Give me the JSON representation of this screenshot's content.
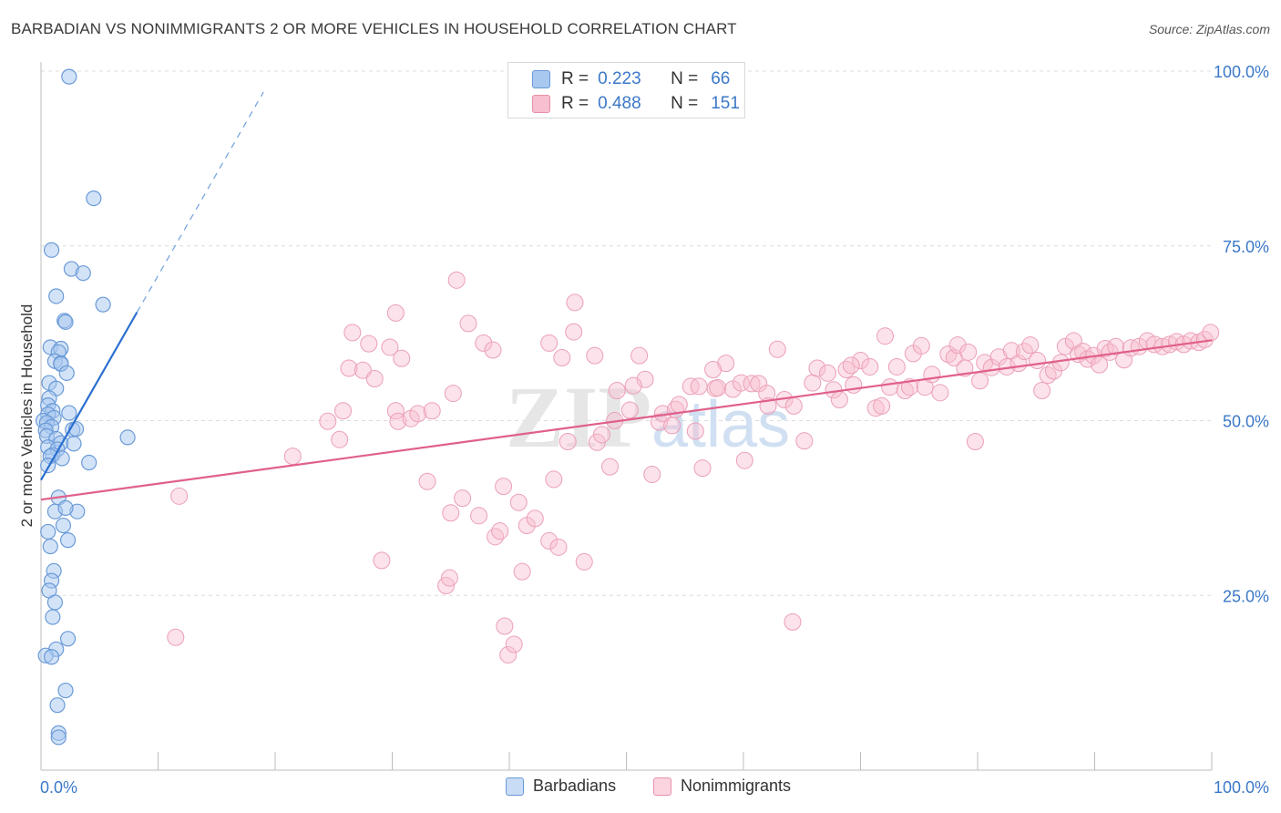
{
  "title": "BARBADIAN VS NONIMMIGRANTS 2 OR MORE VEHICLES IN HOUSEHOLD CORRELATION CHART",
  "source": "Source: ZipAtlas.com",
  "watermark": {
    "zip": "ZIP",
    "atlas": "atlas"
  },
  "legend_top": [
    {
      "r_label": "R =",
      "r_value": "0.223",
      "n_label": "N =",
      "n_value": "66",
      "color": "#a8c8f0",
      "border": "#6a9ad8"
    },
    {
      "r_label": "R =",
      "r_value": "0.488",
      "n_label": "N =",
      "n_value": "151",
      "color": "#f8bfd0",
      "border": "#e890aa"
    }
  ],
  "legend_bottom": [
    {
      "label": "Barbadians",
      "color": "#c8dcf6",
      "border": "#6a9ad8"
    },
    {
      "label": "Nonimmigrants",
      "color": "#fbd4e0",
      "border": "#e890aa"
    }
  ],
  "chart_data": {
    "type": "scatter",
    "title": "BARBADIAN VS NONIMMIGRANTS 2 OR MORE VEHICLES IN HOUSEHOLD CORRELATION CHART",
    "xlabel": "",
    "ylabel": "2 or more Vehicles in Household",
    "xlim": [
      0,
      100
    ],
    "ylim": [
      0,
      100
    ],
    "x_tick_labels": [
      "0.0%",
      "100.0%"
    ],
    "y_tick_labels": [
      "100.0%",
      "75.0%",
      "50.0%",
      "25.0%"
    ],
    "y_ticks": [
      100,
      75,
      50,
      25
    ],
    "grid": true,
    "colors": {
      "barbadians": "#6a9ad8",
      "nonimmigrants": "#e8789c",
      "trend_blue": "#2a6fd0",
      "trend_pink": "#e0608a",
      "tick_label": "#3b78c8"
    },
    "series": [
      {
        "name": "Barbadians",
        "color": "#6a9ad8",
        "trend": {
          "x0": 0.0,
          "y0": 41.5,
          "x1": 8.2,
          "y1": 65.5,
          "dash_x1": 19.0,
          "dash_y1": 97.0
        },
        "points": [
          [
            2.4,
            99.2
          ],
          [
            4.5,
            81.8
          ],
          [
            0.9,
            74.4
          ],
          [
            2.6,
            71.7
          ],
          [
            3.6,
            71.1
          ],
          [
            1.3,
            67.8
          ],
          [
            5.3,
            66.6
          ],
          [
            2.0,
            64.3
          ],
          [
            2.1,
            64.1
          ],
          [
            0.8,
            60.5
          ],
          [
            1.7,
            60.3
          ],
          [
            1.5,
            59.8
          ],
          [
            1.2,
            58.5
          ],
          [
            1.7,
            58.2
          ],
          [
            1.7,
            58.1
          ],
          [
            2.2,
            56.8
          ],
          [
            0.7,
            55.4
          ],
          [
            1.3,
            54.6
          ],
          [
            0.7,
            53.2
          ],
          [
            0.6,
            52.2
          ],
          [
            1.0,
            51.4
          ],
          [
            0.6,
            50.9
          ],
          [
            2.4,
            51.1
          ],
          [
            1.1,
            50.4
          ],
          [
            0.2,
            50.0
          ],
          [
            0.5,
            49.7
          ],
          [
            0.9,
            49.1
          ],
          [
            0.4,
            48.6
          ],
          [
            0.5,
            47.8
          ],
          [
            1.3,
            47.4
          ],
          [
            2.7,
            48.7
          ],
          [
            3.0,
            48.8
          ],
          [
            1.7,
            46.8
          ],
          [
            0.6,
            46.2
          ],
          [
            1.4,
            45.9
          ],
          [
            2.8,
            46.7
          ],
          [
            1.0,
            45.1
          ],
          [
            0.8,
            44.9
          ],
          [
            1.8,
            44.6
          ],
          [
            0.6,
            43.6
          ],
          [
            4.1,
            44.0
          ],
          [
            7.4,
            47.6
          ],
          [
            1.5,
            39.0
          ],
          [
            1.2,
            37.0
          ],
          [
            3.1,
            37.0
          ],
          [
            2.1,
            37.5
          ],
          [
            1.9,
            35.0
          ],
          [
            0.6,
            34.1
          ],
          [
            2.3,
            32.9
          ],
          [
            0.8,
            32.0
          ],
          [
            1.1,
            28.5
          ],
          [
            0.9,
            27.1
          ],
          [
            0.7,
            25.7
          ],
          [
            1.2,
            24.0
          ],
          [
            1.0,
            21.9
          ],
          [
            2.3,
            18.8
          ],
          [
            1.3,
            17.3
          ],
          [
            0.4,
            16.4
          ],
          [
            0.9,
            16.2
          ],
          [
            2.1,
            11.4
          ],
          [
            1.4,
            9.3
          ],
          [
            1.5,
            5.3
          ],
          [
            1.5,
            4.7
          ]
        ]
      },
      {
        "name": "Nonimmigrants",
        "color": "#e8789c",
        "trend": {
          "x0": 0.0,
          "y0": 38.7,
          "x1": 100.0,
          "y1": 61.5
        },
        "points": [
          [
            11.8,
            39.2
          ],
          [
            11.5,
            19.0
          ],
          [
            21.5,
            44.9
          ],
          [
            24.5,
            49.9
          ],
          [
            25.5,
            47.3
          ],
          [
            25.8,
            51.4
          ],
          [
            26.3,
            57.5
          ],
          [
            26.6,
            62.6
          ],
          [
            27.5,
            57.2
          ],
          [
            28.0,
            61.0
          ],
          [
            28.5,
            56.0
          ],
          [
            29.1,
            30.0
          ],
          [
            29.8,
            60.5
          ],
          [
            30.3,
            51.4
          ],
          [
            30.5,
            49.9
          ],
          [
            30.8,
            58.9
          ],
          [
            30.3,
            65.4
          ],
          [
            31.6,
            50.3
          ],
          [
            32.2,
            51.0
          ],
          [
            33.4,
            51.4
          ],
          [
            33.0,
            41.3
          ],
          [
            34.6,
            26.4
          ],
          [
            34.9,
            27.5
          ],
          [
            35.0,
            36.8
          ],
          [
            35.2,
            53.9
          ],
          [
            35.5,
            70.1
          ],
          [
            36.0,
            38.9
          ],
          [
            36.5,
            63.9
          ],
          [
            37.4,
            36.4
          ],
          [
            37.8,
            61.1
          ],
          [
            38.6,
            60.1
          ],
          [
            38.8,
            33.4
          ],
          [
            39.5,
            40.6
          ],
          [
            39.9,
            16.5
          ],
          [
            39.6,
            20.6
          ],
          [
            40.4,
            18.0
          ],
          [
            41.1,
            28.4
          ],
          [
            41.5,
            35.0
          ],
          [
            42.2,
            36.0
          ],
          [
            43.4,
            32.8
          ],
          [
            43.8,
            41.6
          ],
          [
            44.2,
            31.9
          ],
          [
            43.4,
            61.1
          ],
          [
            44.5,
            59.0
          ],
          [
            45.0,
            47.0
          ],
          [
            45.5,
            62.7
          ],
          [
            45.6,
            66.9
          ],
          [
            46.4,
            29.8
          ],
          [
            47.3,
            59.3
          ],
          [
            47.5,
            46.9
          ],
          [
            47.9,
            48.0
          ],
          [
            48.6,
            43.4
          ],
          [
            49.0,
            50.0
          ],
          [
            49.2,
            54.3
          ],
          [
            50.3,
            51.5
          ],
          [
            51.1,
            59.3
          ],
          [
            51.6,
            55.9
          ],
          [
            52.2,
            42.3
          ],
          [
            52.8,
            49.8
          ],
          [
            53.1,
            51.0
          ],
          [
            53.9,
            49.3
          ],
          [
            54.2,
            51.6
          ],
          [
            54.5,
            52.3
          ],
          [
            55.5,
            54.9
          ],
          [
            55.9,
            48.5
          ],
          [
            56.2,
            54.9
          ],
          [
            56.5,
            43.2
          ],
          [
            57.6,
            54.6
          ],
          [
            57.8,
            54.7
          ],
          [
            58.5,
            58.2
          ],
          [
            59.1,
            54.5
          ],
          [
            59.8,
            55.4
          ],
          [
            60.1,
            44.3
          ],
          [
            60.7,
            55.3
          ],
          [
            61.3,
            55.3
          ],
          [
            62.0,
            53.9
          ],
          [
            62.1,
            52.1
          ],
          [
            62.9,
            60.2
          ],
          [
            63.5,
            53.0
          ],
          [
            64.3,
            52.1
          ],
          [
            64.2,
            21.2
          ],
          [
            65.2,
            47.1
          ],
          [
            65.9,
            55.4
          ],
          [
            66.3,
            57.5
          ],
          [
            67.2,
            56.8
          ],
          [
            67.7,
            54.4
          ],
          [
            68.2,
            53.0
          ],
          [
            68.8,
            57.3
          ],
          [
            69.4,
            55.1
          ],
          [
            70.0,
            58.6
          ],
          [
            70.8,
            57.7
          ],
          [
            71.3,
            51.8
          ],
          [
            71.8,
            52.1
          ],
          [
            72.1,
            62.1
          ],
          [
            72.5,
            54.8
          ],
          [
            73.1,
            57.7
          ],
          [
            73.8,
            54.3
          ],
          [
            74.2,
            54.8
          ],
          [
            74.5,
            59.6
          ],
          [
            75.2,
            60.7
          ],
          [
            75.5,
            54.8
          ],
          [
            76.1,
            56.6
          ],
          [
            76.8,
            54.0
          ],
          [
            77.5,
            59.5
          ],
          [
            78.0,
            59.0
          ],
          [
            78.3,
            60.8
          ],
          [
            78.9,
            57.5
          ],
          [
            79.2,
            59.8
          ],
          [
            79.8,
            47.0
          ],
          [
            80.2,
            55.7
          ],
          [
            80.6,
            58.3
          ],
          [
            81.2,
            57.6
          ],
          [
            81.8,
            59.1
          ],
          [
            82.5,
            57.7
          ],
          [
            82.9,
            60.0
          ],
          [
            83.5,
            58.2
          ],
          [
            84.0,
            59.9
          ],
          [
            84.5,
            60.8
          ],
          [
            85.1,
            58.6
          ],
          [
            85.5,
            54.3
          ],
          [
            86.0,
            56.5
          ],
          [
            86.5,
            57.1
          ],
          [
            87.1,
            58.3
          ],
          [
            87.5,
            60.6
          ],
          [
            88.2,
            61.4
          ],
          [
            88.6,
            59.5
          ],
          [
            89.0,
            59.9
          ],
          [
            89.4,
            58.8
          ],
          [
            89.9,
            59.3
          ],
          [
            90.4,
            58.0
          ],
          [
            90.9,
            60.3
          ],
          [
            91.3,
            59.8
          ],
          [
            91.8,
            60.6
          ],
          [
            92.5,
            58.7
          ],
          [
            93.1,
            60.4
          ],
          [
            93.8,
            60.6
          ],
          [
            94.5,
            61.4
          ],
          [
            95.1,
            60.9
          ],
          [
            95.8,
            60.6
          ],
          [
            96.4,
            60.9
          ],
          [
            97.0,
            61.3
          ],
          [
            97.6,
            60.9
          ],
          [
            98.2,
            61.4
          ],
          [
            98.9,
            61.2
          ],
          [
            99.4,
            61.6
          ],
          [
            99.9,
            62.6
          ],
          [
            69.2,
            57.9
          ],
          [
            57.4,
            57.3
          ],
          [
            40.8,
            38.3
          ],
          [
            39.2,
            34.2
          ],
          [
            50.6,
            55.0
          ]
        ]
      }
    ]
  }
}
